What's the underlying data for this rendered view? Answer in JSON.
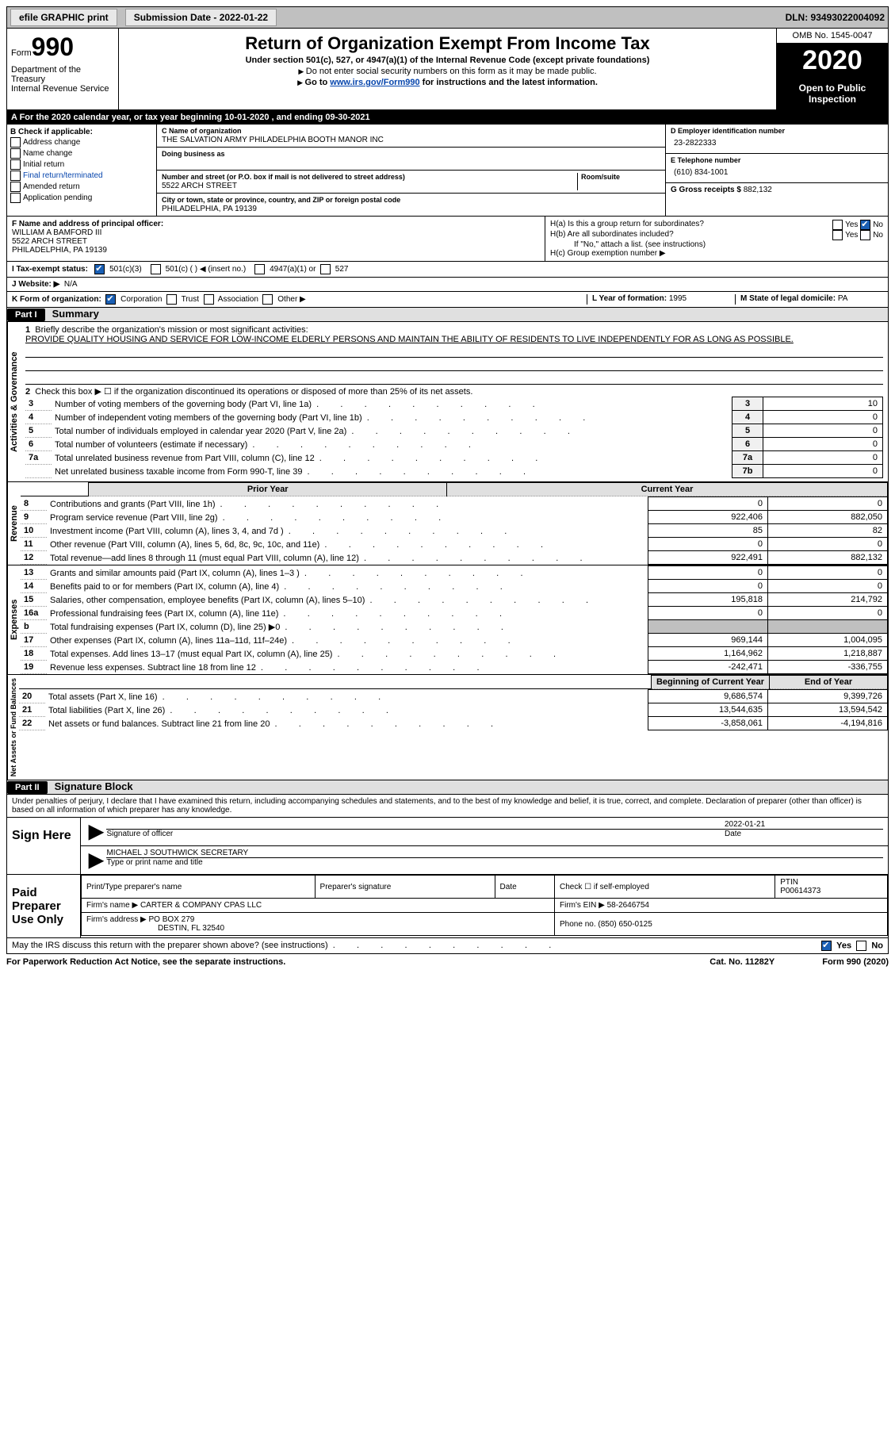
{
  "topbar": {
    "efile": "efile GRAPHIC print",
    "submission": "Submission Date - 2022-01-22",
    "dln": "DLN: 93493022004092"
  },
  "header": {
    "form_label": "Form",
    "form_number": "990",
    "dept": "Department of the Treasury\nInternal Revenue Service",
    "title": "Return of Organization Exempt From Income Tax",
    "subtitle": "Under section 501(c), 527, or 4947(a)(1) of the Internal Revenue Code (except private foundations)",
    "note1": "Do not enter social security numbers on this form as it may be made public.",
    "note2_prefix": "Go to ",
    "note2_link": "www.irs.gov/Form990",
    "note2_suffix": " for instructions and the latest information.",
    "omb": "OMB No. 1545-0047",
    "year": "2020",
    "inspection": "Open to Public Inspection"
  },
  "line_a": "A For the 2020 calendar year, or tax year beginning 10-01-2020   , and ending 09-30-2021",
  "box_b": {
    "title": "B Check if applicable:",
    "items": [
      "Address change",
      "Name change",
      "Initial return",
      "Final return/terminated",
      "Amended return",
      "Application pending"
    ]
  },
  "box_c": {
    "name_lbl": "C Name of organization",
    "name": "THE SALVATION ARMY PHILADELPHIA BOOTH MANOR INC",
    "dba_lbl": "Doing business as",
    "dba": "",
    "addr_lbl": "Number and street (or P.O. box if mail is not delivered to street address)",
    "addr": "5522 ARCH STREET",
    "room_lbl": "Room/suite",
    "city_lbl": "City or town, state or province, country, and ZIP or foreign postal code",
    "city": "PHILADELPHIA, PA  19139"
  },
  "box_d": {
    "lbl": "D Employer identification number",
    "val": "23-2822333"
  },
  "box_e": {
    "lbl": "E Telephone number",
    "val": "(610) 834-1001"
  },
  "box_g": {
    "lbl": "G Gross receipts $",
    "val": "882,132"
  },
  "box_f": {
    "lbl": "F Name and address of principal officer:",
    "name": "WILLIAM A BAMFORD III",
    "addr1": "5522 ARCH STREET",
    "addr2": "PHILADELPHIA, PA  19139"
  },
  "box_h": {
    "a": "H(a)  Is this a group return for subordinates?",
    "b": "H(b)  Are all subordinates included?",
    "b_note": "If \"No,\" attach a list. (see instructions)",
    "c": "H(c)  Group exemption number ▶",
    "yes": "Yes",
    "no": "No"
  },
  "box_i": {
    "lbl": "I   Tax-exempt status:",
    "opt1": "501(c)(3)",
    "opt2": "501(c) (  ) ◀ (insert no.)",
    "opt3": "4947(a)(1) or",
    "opt4": "527"
  },
  "box_j": {
    "lbl": "J   Website: ▶",
    "val": "N/A"
  },
  "box_k": {
    "lbl": "K Form of organization:",
    "opts": [
      "Corporation",
      "Trust",
      "Association",
      "Other ▶"
    ]
  },
  "box_l": {
    "lbl": "L Year of formation:",
    "val": "1995"
  },
  "box_m": {
    "lbl": "M State of legal domicile:",
    "val": "PA"
  },
  "part1": {
    "hdr": "Part I",
    "title": "Summary"
  },
  "summary": {
    "q1": "Briefly describe the organization's mission or most significant activities:",
    "mission": "PROVIDE QUALITY HOUSING AND SERVICE FOR LOW-INCOME ELDERLY PERSONS AND MAINTAIN THE ABILITY OF RESIDENTS TO LIVE INDEPENDENTLY FOR AS LONG AS POSSIBLE.",
    "q2": "Check this box ▶ ☐  if the organization discontinued its operations or disposed of more than 25% of its net assets.",
    "lines": [
      {
        "n": "3",
        "t": "Number of voting members of the governing body (Part VI, line 1a)",
        "box": "3",
        "v": "10"
      },
      {
        "n": "4",
        "t": "Number of independent voting members of the governing body (Part VI, line 1b)",
        "box": "4",
        "v": "0"
      },
      {
        "n": "5",
        "t": "Total number of individuals employed in calendar year 2020 (Part V, line 2a)",
        "box": "5",
        "v": "0"
      },
      {
        "n": "6",
        "t": "Total number of volunteers (estimate if necessary)",
        "box": "6",
        "v": "0"
      },
      {
        "n": "7a",
        "t": "Total unrelated business revenue from Part VIII, column (C), line 12",
        "box": "7a",
        "v": "0"
      },
      {
        "n": "",
        "t": "Net unrelated business taxable income from Form 990-T, line 39",
        "box": "7b",
        "v": "0"
      }
    ],
    "col_hdr_prior": "Prior Year",
    "col_hdr_curr": "Current Year",
    "revenue": [
      {
        "n": "8",
        "t": "Contributions and grants (Part VIII, line 1h)",
        "p": "0",
        "c": "0"
      },
      {
        "n": "9",
        "t": "Program service revenue (Part VIII, line 2g)",
        "p": "922,406",
        "c": "882,050"
      },
      {
        "n": "10",
        "t": "Investment income (Part VIII, column (A), lines 3, 4, and 7d )",
        "p": "85",
        "c": "82"
      },
      {
        "n": "11",
        "t": "Other revenue (Part VIII, column (A), lines 5, 6d, 8c, 9c, 10c, and 11e)",
        "p": "0",
        "c": "0"
      },
      {
        "n": "12",
        "t": "Total revenue—add lines 8 through 11 (must equal Part VIII, column (A), line 12)",
        "p": "922,491",
        "c": "882,132"
      }
    ],
    "expenses": [
      {
        "n": "13",
        "t": "Grants and similar amounts paid (Part IX, column (A), lines 1–3 )",
        "p": "0",
        "c": "0"
      },
      {
        "n": "14",
        "t": "Benefits paid to or for members (Part IX, column (A), line 4)",
        "p": "0",
        "c": "0"
      },
      {
        "n": "15",
        "t": "Salaries, other compensation, employee benefits (Part IX, column (A), lines 5–10)",
        "p": "195,818",
        "c": "214,792"
      },
      {
        "n": "16a",
        "t": "Professional fundraising fees (Part IX, column (A), line 11e)",
        "p": "0",
        "c": "0"
      },
      {
        "n": "b",
        "t": "Total fundraising expenses (Part IX, column (D), line 25) ▶0",
        "p": "",
        "c": "",
        "gray": true
      },
      {
        "n": "17",
        "t": "Other expenses (Part IX, column (A), lines 11a–11d, 11f–24e)",
        "p": "969,144",
        "c": "1,004,095"
      },
      {
        "n": "18",
        "t": "Total expenses. Add lines 13–17 (must equal Part IX, column (A), line 25)",
        "p": "1,164,962",
        "c": "1,218,887"
      },
      {
        "n": "19",
        "t": "Revenue less expenses. Subtract line 18 from line 12",
        "p": "-242,471",
        "c": "-336,755"
      }
    ],
    "col_hdr_begin": "Beginning of Current Year",
    "col_hdr_end": "End of Year",
    "netassets": [
      {
        "n": "20",
        "t": "Total assets (Part X, line 16)",
        "p": "9,686,574",
        "c": "9,399,726"
      },
      {
        "n": "21",
        "t": "Total liabilities (Part X, line 26)",
        "p": "13,544,635",
        "c": "13,594,542"
      },
      {
        "n": "22",
        "t": "Net assets or fund balances. Subtract line 21 from line 20",
        "p": "-3,858,061",
        "c": "-4,194,816"
      }
    ]
  },
  "vert_labels": {
    "gov": "Activities & Governance",
    "rev": "Revenue",
    "exp": "Expenses",
    "net": "Net Assets or Fund Balances"
  },
  "part2": {
    "hdr": "Part II",
    "title": "Signature Block"
  },
  "penalties": "Under penalties of perjury, I declare that I have examined this return, including accompanying schedules and statements, and to the best of my knowledge and belief, it is true, correct, and complete. Declaration of preparer (other than officer) is based on all information of which preparer has any knowledge.",
  "sign": {
    "lbl": "Sign Here",
    "sig_lbl": "Signature of officer",
    "date_lbl": "Date",
    "date": "2022-01-21",
    "name": "MICHAEL J SOUTHWICK  SECRETARY",
    "name_lbl": "Type or print name and title"
  },
  "prep": {
    "lbl": "Paid Preparer Use Only",
    "cols": [
      "Print/Type preparer's name",
      "Preparer's signature",
      "Date"
    ],
    "self_emp": "Check ☐  if self-employed",
    "ptin_lbl": "PTIN",
    "ptin": "P00614373",
    "firm_name_lbl": "Firm's name   ▶",
    "firm_name": "CARTER & COMPANY CPAS LLC",
    "firm_ein_lbl": "Firm's EIN ▶",
    "firm_ein": "58-2646754",
    "firm_addr_lbl": "Firm's address ▶",
    "firm_addr1": "PO BOX 279",
    "firm_addr2": "DESTIN, FL  32540",
    "phone_lbl": "Phone no.",
    "phone": "(850) 650-0125"
  },
  "discuss": {
    "q": "May the IRS discuss this return with the preparer shown above? (see instructions)",
    "yes": "Yes",
    "no": "No"
  },
  "footer": {
    "left": "For Paperwork Reduction Act Notice, see the separate instructions.",
    "mid": "Cat. No. 11282Y",
    "right": "Form 990 (2020)"
  }
}
